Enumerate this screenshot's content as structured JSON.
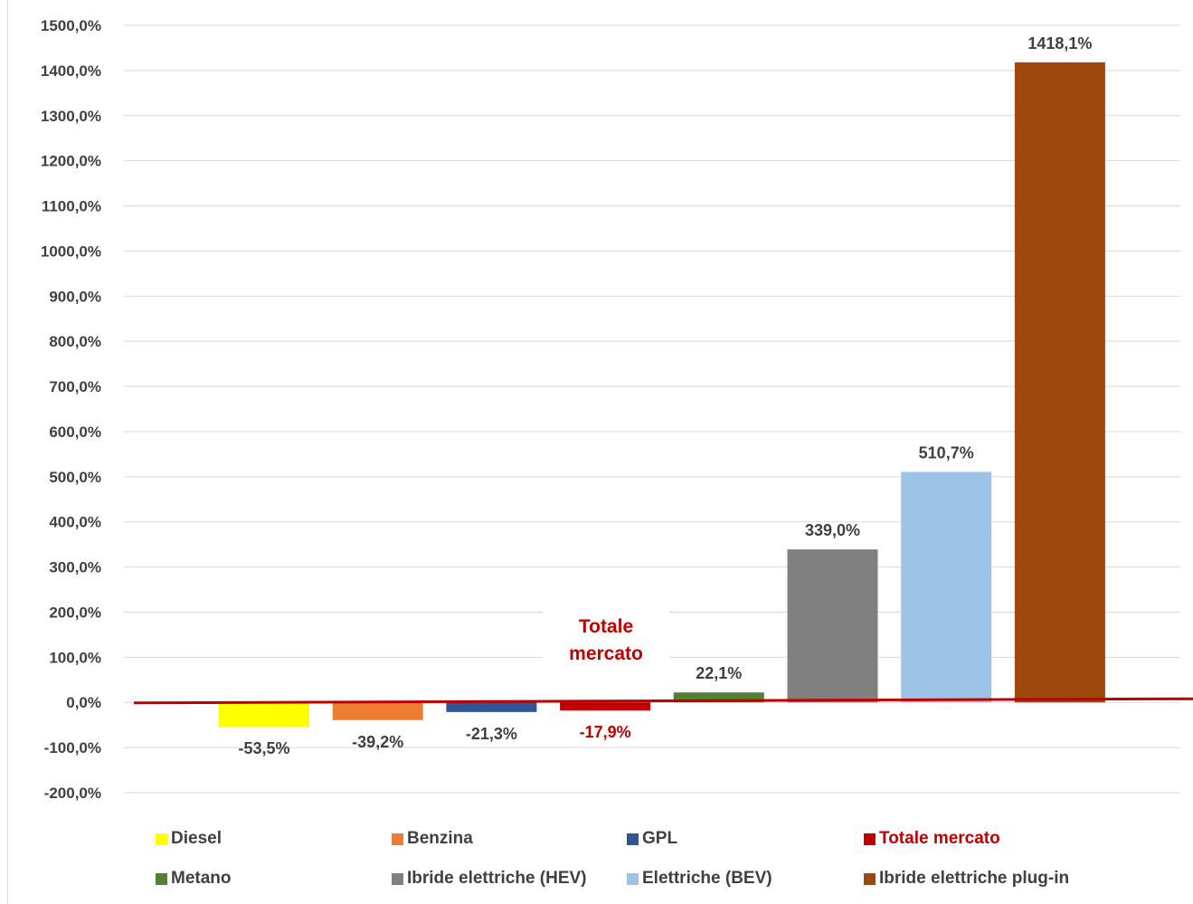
{
  "chart_data": {
    "type": "bar",
    "categories": [
      "Diesel",
      "Benzina",
      "GPL",
      "Totale mercato",
      "Metano",
      "Ibride elettriche (HEV)",
      "Elettriche (BEV)",
      "Ibride elettriche plug-in"
    ],
    "values": [
      -53.5,
      -39.2,
      -21.3,
      -17.9,
      22.1,
      339.0,
      510.7,
      1418.1
    ],
    "data_labels": [
      "-53,5%",
      "-39,2%",
      "-21,3%",
      "-17,9%",
      "22,1%",
      "339,0%",
      "510,7%",
      "1418,1%"
    ],
    "colors": [
      "#ffff00",
      "#ed7d31",
      "#2f5597",
      "#c00000",
      "#548235",
      "#808080",
      "#9dc3e6",
      "#9e480e"
    ],
    "ylim": [
      -200,
      1500
    ],
    "yticks": [
      -200,
      -100,
      0,
      100,
      200,
      300,
      400,
      500,
      600,
      700,
      800,
      900,
      1000,
      1100,
      1200,
      1300,
      1400,
      1500
    ],
    "ytick_labels": [
      "-200,0%",
      "-100,0%",
      "0,0%",
      "100,0%",
      "200,0%",
      "300,0%",
      "400,0%",
      "500,0%",
      "600,0%",
      "700,0%",
      "800,0%",
      "900,0%",
      "1000,0%",
      "1100,0%",
      "1200,0%",
      "1300,0%",
      "1400,0%",
      "1500,0%"
    ],
    "grid": true,
    "baseline_color": "#c00000",
    "highlight_color": "#c00000",
    "text_color": "#404040",
    "annotation": "Totale mercato",
    "legend_position": "bottom",
    "title": "",
    "xlabel": "",
    "ylabel": ""
  }
}
